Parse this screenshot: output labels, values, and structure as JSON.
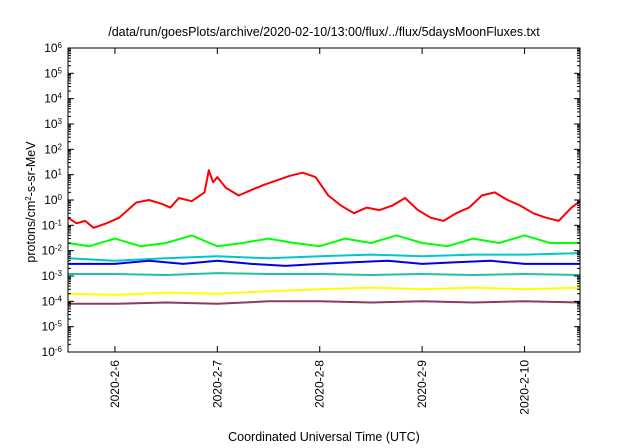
{
  "chart_data": {
    "type": "line",
    "title": "/data/run/goesPlots/archive/2020-02-10/13:00/flux/../flux/5daysMoonFluxes.txt",
    "xlabel": "Coordinated Universal Time (UTC)",
    "ylabel": {
      "pre": "protons/cm",
      "sup": "2",
      "post": "-s-sr-MeV"
    },
    "y_scale": "log",
    "ylim_exp": [
      -6,
      6
    ],
    "y_ticks": [
      {
        "base": "10",
        "exp": "-6"
      },
      {
        "base": "10",
        "exp": "-5"
      },
      {
        "base": "10",
        "exp": "-4"
      },
      {
        "base": "10",
        "exp": "-3"
      },
      {
        "base": "10",
        "exp": "-2"
      },
      {
        "base": "10",
        "exp": "-1"
      },
      {
        "base": "10",
        "exp": "0"
      },
      {
        "base": "10",
        "exp": "1"
      },
      {
        "base": "10",
        "exp": "2"
      },
      {
        "base": "10",
        "exp": "3"
      },
      {
        "base": "10",
        "exp": "4"
      },
      {
        "base": "10",
        "exp": "5"
      },
      {
        "base": "10",
        "exp": "6"
      }
    ],
    "x_range": [
      "2020-02-05T13:00",
      "2020-02-10T13:00"
    ],
    "x_ticks": [
      {
        "label": "2020-2-6",
        "x": "2020-02-06T00:00"
      },
      {
        "label": "2020-2-7",
        "x": "2020-02-07T00:00"
      },
      {
        "label": "2020-2-8",
        "x": "2020-02-08T00:00"
      },
      {
        "label": "2020-2-9",
        "x": "2020-02-09T00:00"
      },
      {
        "label": "2020-2-10",
        "x": "2020-02-10T00:00"
      }
    ],
    "grid": false,
    "series": [
      {
        "color": "#ff0000",
        "data": [
          [
            "2020-02-05T13:00",
            0.2
          ],
          [
            "2020-02-05T15:00",
            0.12
          ],
          [
            "2020-02-05T17:00",
            0.15
          ],
          [
            "2020-02-05T19:00",
            0.08
          ],
          [
            "2020-02-05T22:00",
            0.12
          ],
          [
            "2020-02-06T01:00",
            0.2
          ],
          [
            "2020-02-06T03:00",
            0.4
          ],
          [
            "2020-02-06T05:00",
            0.8
          ],
          [
            "2020-02-06T08:00",
            1.0
          ],
          [
            "2020-02-06T11:00",
            0.7
          ],
          [
            "2020-02-06T13:00",
            0.5
          ],
          [
            "2020-02-06T15:00",
            1.2
          ],
          [
            "2020-02-06T18:00",
            0.9
          ],
          [
            "2020-02-06T21:00",
            2.0
          ],
          [
            "2020-02-06T22:00",
            15.0
          ],
          [
            "2020-02-06T23:00",
            5.0
          ],
          [
            "2020-02-07T00:00",
            8.0
          ],
          [
            "2020-02-07T02:00",
            3.0
          ],
          [
            "2020-02-07T05:00",
            1.5
          ],
          [
            "2020-02-07T08:00",
            2.5
          ],
          [
            "2020-02-07T11:00",
            4.0
          ],
          [
            "2020-02-07T14:00",
            6.0
          ],
          [
            "2020-02-07T17:00",
            9.0
          ],
          [
            "2020-02-07T20:00",
            12.0
          ],
          [
            "2020-02-07T23:00",
            8.0
          ],
          [
            "2020-02-08T02:00",
            1.5
          ],
          [
            "2020-02-08T05:00",
            0.6
          ],
          [
            "2020-02-08T08:00",
            0.3
          ],
          [
            "2020-02-08T11:00",
            0.5
          ],
          [
            "2020-02-08T14:00",
            0.4
          ],
          [
            "2020-02-08T17:00",
            0.6
          ],
          [
            "2020-02-08T20:00",
            1.2
          ],
          [
            "2020-02-08T23:00",
            0.4
          ],
          [
            "2020-02-09T02:00",
            0.2
          ],
          [
            "2020-02-09T05:00",
            0.15
          ],
          [
            "2020-02-09T08:00",
            0.3
          ],
          [
            "2020-02-09T11:00",
            0.5
          ],
          [
            "2020-02-09T14:00",
            1.5
          ],
          [
            "2020-02-09T17:00",
            2.0
          ],
          [
            "2020-02-09T20:00",
            1.0
          ],
          [
            "2020-02-09T23:00",
            0.6
          ],
          [
            "2020-02-10T02:00",
            0.3
          ],
          [
            "2020-02-10T05:00",
            0.2
          ],
          [
            "2020-02-10T08:00",
            0.15
          ],
          [
            "2020-02-10T11:00",
            0.5
          ],
          [
            "2020-02-10T13:00",
            0.9
          ]
        ]
      },
      {
        "color": "#00ff00",
        "data": [
          [
            "2020-02-05T13:00",
            0.02
          ],
          [
            "2020-02-05T18:00",
            0.015
          ],
          [
            "2020-02-06T00:00",
            0.03
          ],
          [
            "2020-02-06T06:00",
            0.015
          ],
          [
            "2020-02-06T12:00",
            0.02
          ],
          [
            "2020-02-06T18:00",
            0.04
          ],
          [
            "2020-02-07T00:00",
            0.015
          ],
          [
            "2020-02-07T06:00",
            0.02
          ],
          [
            "2020-02-07T12:00",
            0.03
          ],
          [
            "2020-02-07T18:00",
            0.02
          ],
          [
            "2020-02-08T00:00",
            0.015
          ],
          [
            "2020-02-08T06:00",
            0.03
          ],
          [
            "2020-02-08T12:00",
            0.02
          ],
          [
            "2020-02-08T18:00",
            0.04
          ],
          [
            "2020-02-09T00:00",
            0.02
          ],
          [
            "2020-02-09T06:00",
            0.015
          ],
          [
            "2020-02-09T12:00",
            0.03
          ],
          [
            "2020-02-09T18:00",
            0.02
          ],
          [
            "2020-02-10T00:00",
            0.04
          ],
          [
            "2020-02-10T06:00",
            0.02
          ],
          [
            "2020-02-10T13:00",
            0.02
          ]
        ]
      },
      {
        "color": "#00c8c8",
        "data": [
          [
            "2020-02-05T13:00",
            0.005
          ],
          [
            "2020-02-06T00:00",
            0.004
          ],
          [
            "2020-02-06T12:00",
            0.005
          ],
          [
            "2020-02-07T00:00",
            0.006
          ],
          [
            "2020-02-07T12:00",
            0.005
          ],
          [
            "2020-02-08T00:00",
            0.006
          ],
          [
            "2020-02-08T12:00",
            0.007
          ],
          [
            "2020-02-09T00:00",
            0.006
          ],
          [
            "2020-02-09T12:00",
            0.007
          ],
          [
            "2020-02-10T00:00",
            0.007
          ],
          [
            "2020-02-10T13:00",
            0.008
          ]
        ]
      },
      {
        "color": "#0000e6",
        "data": [
          [
            "2020-02-05T13:00",
            0.003
          ],
          [
            "2020-02-06T00:00",
            0.003
          ],
          [
            "2020-02-06T08:00",
            0.004
          ],
          [
            "2020-02-06T16:00",
            0.003
          ],
          [
            "2020-02-07T00:00",
            0.004
          ],
          [
            "2020-02-07T08:00",
            0.003
          ],
          [
            "2020-02-07T16:00",
            0.0025
          ],
          [
            "2020-02-08T00:00",
            0.003
          ],
          [
            "2020-02-08T08:00",
            0.0035
          ],
          [
            "2020-02-08T16:00",
            0.004
          ],
          [
            "2020-02-09T00:00",
            0.003
          ],
          [
            "2020-02-09T08:00",
            0.0035
          ],
          [
            "2020-02-09T16:00",
            0.004
          ],
          [
            "2020-02-10T00:00",
            0.003
          ],
          [
            "2020-02-10T13:00",
            0.003
          ]
        ]
      },
      {
        "color": "#20c0a0",
        "data": [
          [
            "2020-02-05T13:00",
            0.0012
          ],
          [
            "2020-02-06T00:00",
            0.0012
          ],
          [
            "2020-02-06T12:00",
            0.0011
          ],
          [
            "2020-02-07T00:00",
            0.0013
          ],
          [
            "2020-02-07T12:00",
            0.0012
          ],
          [
            "2020-02-08T00:00",
            0.0012
          ],
          [
            "2020-02-08T12:00",
            0.0011
          ],
          [
            "2020-02-09T00:00",
            0.0012
          ],
          [
            "2020-02-09T12:00",
            0.0011
          ],
          [
            "2020-02-10T00:00",
            0.0012
          ],
          [
            "2020-02-10T13:00",
            0.0011
          ]
        ]
      },
      {
        "color": "#ffff00",
        "data": [
          [
            "2020-02-05T13:00",
            0.0002
          ],
          [
            "2020-02-06T00:00",
            0.00018
          ],
          [
            "2020-02-06T12:00",
            0.00022
          ],
          [
            "2020-02-07T00:00",
            0.0002
          ],
          [
            "2020-02-07T12:00",
            0.00025
          ],
          [
            "2020-02-08T00:00",
            0.0003
          ],
          [
            "2020-02-08T12:00",
            0.00035
          ],
          [
            "2020-02-09T00:00",
            0.0003
          ],
          [
            "2020-02-09T12:00",
            0.00035
          ],
          [
            "2020-02-10T00:00",
            0.0003
          ],
          [
            "2020-02-10T13:00",
            0.00035
          ]
        ]
      },
      {
        "color": "#8b3a62",
        "data": [
          [
            "2020-02-05T13:00",
            8e-05
          ],
          [
            "2020-02-06T00:00",
            8e-05
          ],
          [
            "2020-02-06T12:00",
            9e-05
          ],
          [
            "2020-02-07T00:00",
            8e-05
          ],
          [
            "2020-02-07T12:00",
            0.0001
          ],
          [
            "2020-02-08T00:00",
            0.0001
          ],
          [
            "2020-02-08T12:00",
            9e-05
          ],
          [
            "2020-02-09T00:00",
            0.0001
          ],
          [
            "2020-02-09T12:00",
            9e-05
          ],
          [
            "2020-02-10T00:00",
            0.0001
          ],
          [
            "2020-02-10T13:00",
            9e-05
          ]
        ]
      }
    ]
  }
}
